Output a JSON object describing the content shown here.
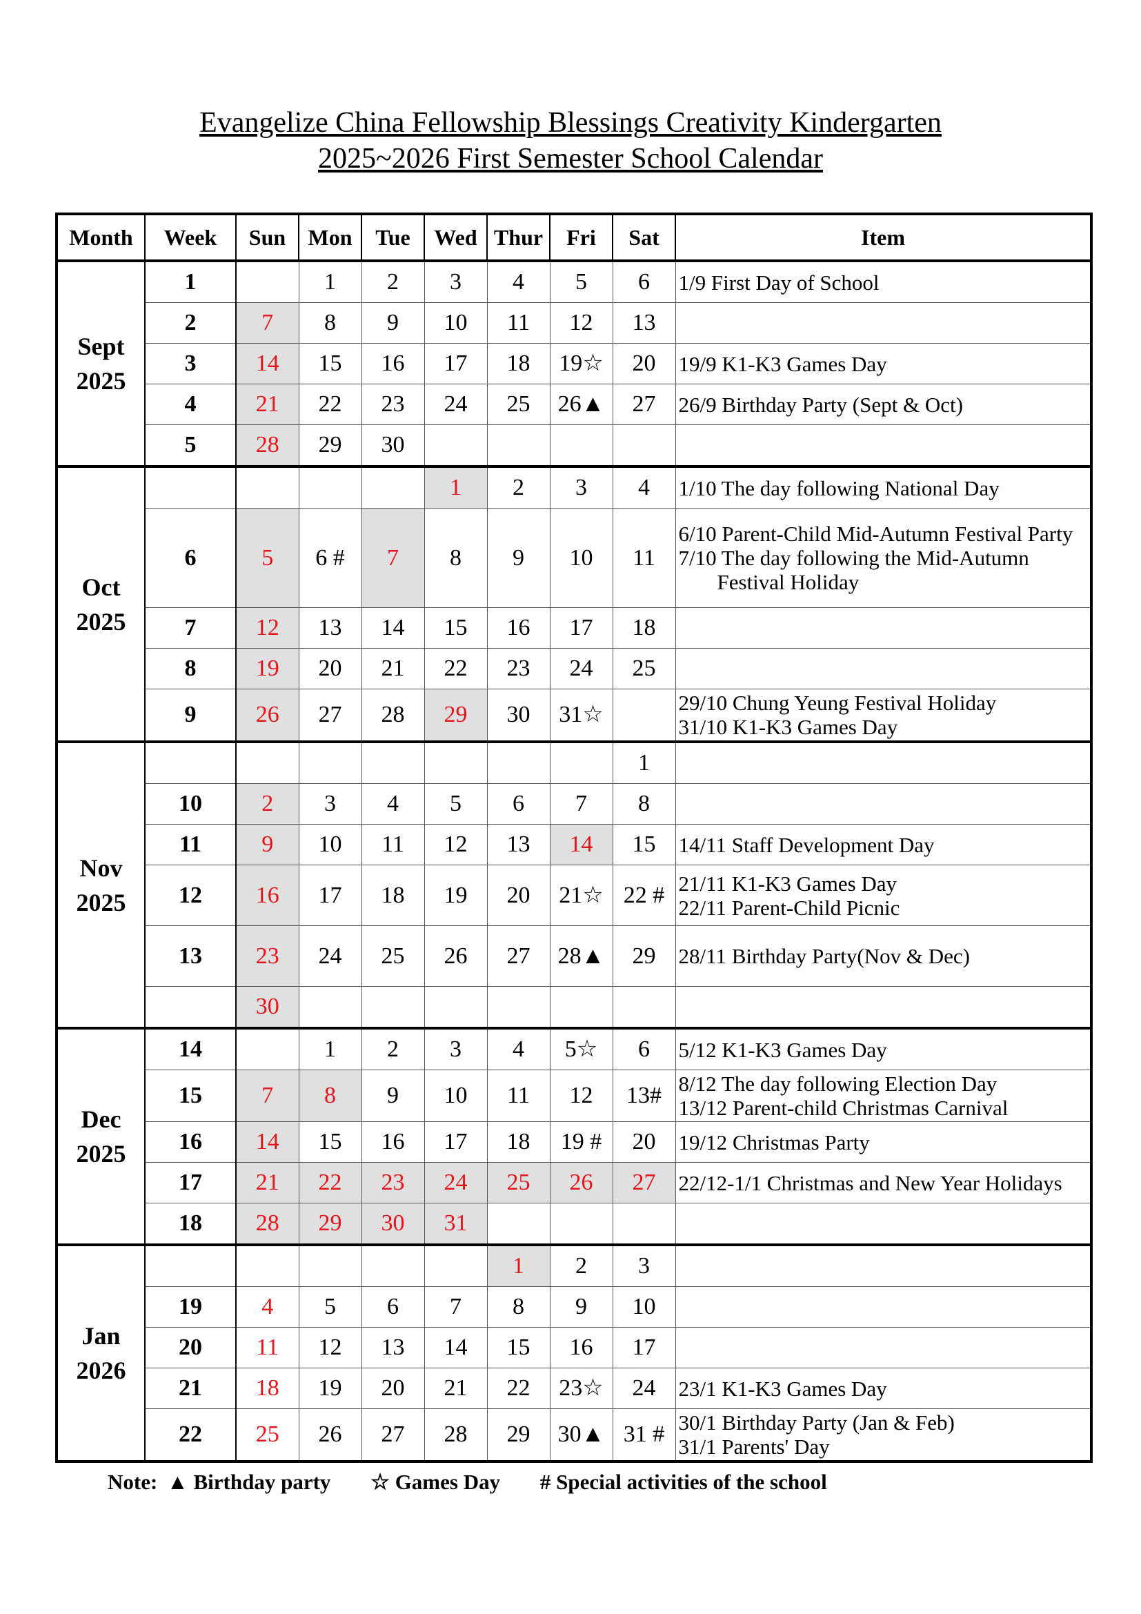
{
  "title": {
    "line1": "Evangelize China Fellowship Blessings Creativity Kindergarten",
    "line2": "2025~2026 First Semester School Calendar"
  },
  "colors": {
    "holiday_text": "#e8141c",
    "holiday_fill": "#e0e0e0"
  },
  "headers": [
    "Month",
    "Week",
    "Sun",
    "Mon",
    "Tue",
    "Wed",
    "Thur",
    "Fri",
    "Sat",
    "Item"
  ],
  "groups": [
    {
      "month": "Sept",
      "year": "2025",
      "rows": [
        {
          "week": "1",
          "days": [
            "",
            "1",
            "2",
            "3",
            "4",
            "5",
            "6"
          ],
          "red": [],
          "grey": [],
          "items": [
            "1/9 First Day of School"
          ]
        },
        {
          "week": "2",
          "days": [
            "7",
            "8",
            "9",
            "10",
            "11",
            "12",
            "13"
          ],
          "red": [
            0
          ],
          "grey": [
            0
          ],
          "items": []
        },
        {
          "week": "3",
          "days": [
            "14",
            "15",
            "16",
            "17",
            "18",
            "19☆",
            "20"
          ],
          "red": [
            0
          ],
          "grey": [
            0
          ],
          "items": [
            "19/9 K1-K3 Games Day"
          ]
        },
        {
          "week": "4",
          "days": [
            "21",
            "22",
            "23",
            "24",
            "25",
            "26▲",
            "27"
          ],
          "red": [
            0
          ],
          "grey": [
            0
          ],
          "items": [
            "26/9 Birthday Party (Sept & Oct)"
          ]
        },
        {
          "week": "5",
          "days": [
            "28",
            "29",
            "30",
            "",
            "",
            "",
            ""
          ],
          "red": [
            0
          ],
          "grey": [
            0
          ],
          "items": []
        }
      ]
    },
    {
      "month": "Oct",
      "year": "2025",
      "rows": [
        {
          "week": "",
          "days": [
            "",
            "",
            "",
            "1",
            "2",
            "3",
            "4"
          ],
          "red": [
            3
          ],
          "grey": [
            3
          ],
          "items": [
            "1/10 The day following National Day"
          ]
        },
        {
          "week": "6",
          "days": [
            "5",
            "6 #",
            "7",
            "8",
            "9",
            "10",
            "11"
          ],
          "red": [
            0,
            2
          ],
          "grey": [
            0,
            2
          ],
          "items": [
            "6/10  Parent-Child  Mid-Autumn  Festival Party",
            "7/10  The day following the Mid-Autumn Festival Holiday"
          ]
        },
        {
          "week": "7",
          "days": [
            "12",
            "13",
            "14",
            "15",
            "16",
            "17",
            "18"
          ],
          "red": [
            0
          ],
          "grey": [
            0
          ],
          "items": []
        },
        {
          "week": "8",
          "days": [
            "19",
            "20",
            "21",
            "22",
            "23",
            "24",
            "25"
          ],
          "red": [
            0
          ],
          "grey": [
            0
          ],
          "items": []
        },
        {
          "week": "9",
          "days": [
            "26",
            "27",
            "28",
            "29",
            "30",
            "31☆",
            ""
          ],
          "red": [
            0,
            3
          ],
          "grey": [
            0,
            3
          ],
          "items": [
            "29/10 Chung Yeung Festival Holiday",
            "31/10 K1-K3 Games Day"
          ]
        }
      ]
    },
    {
      "month": "Nov",
      "year": "2025",
      "rows": [
        {
          "week": "",
          "days": [
            "",
            "",
            "",
            "",
            "",
            "",
            "1"
          ],
          "red": [],
          "grey": [],
          "items": []
        },
        {
          "week": "10",
          "days": [
            "2",
            "3",
            "4",
            "5",
            "6",
            "7",
            "8"
          ],
          "red": [
            0
          ],
          "grey": [
            0
          ],
          "items": []
        },
        {
          "week": "11",
          "days": [
            "9",
            "10",
            "11",
            "12",
            "13",
            "14",
            "15"
          ],
          "red": [
            0,
            5
          ],
          "grey": [
            0,
            5
          ],
          "items": [
            "14/11 Staff Development Day"
          ]
        },
        {
          "week": "12",
          "days": [
            "16",
            "17",
            "18",
            "19",
            "20",
            "21☆",
            "22 #"
          ],
          "red": [
            0
          ],
          "grey": [
            0
          ],
          "items": [
            "21/11 K1-K3 Games Day",
            "22/11 Parent-Child Picnic"
          ]
        },
        {
          "week": "13",
          "days": [
            "23",
            "24",
            "25",
            "26",
            "27",
            "28▲",
            "29"
          ],
          "red": [
            0
          ],
          "grey": [
            0
          ],
          "items": [
            "28/11 Birthday Party(Nov & Dec)"
          ]
        },
        {
          "week": "",
          "days": [
            "30",
            "",
            "",
            "",
            "",
            "",
            ""
          ],
          "red": [
            0
          ],
          "grey": [
            0
          ],
          "items": []
        }
      ]
    },
    {
      "month": "Dec",
      "year": "2025",
      "rows": [
        {
          "week": "14",
          "days": [
            "",
            "1",
            "2",
            "3",
            "4",
            "5☆",
            "6"
          ],
          "red": [],
          "grey": [],
          "items": [
            "5/12 K1-K3 Games Day"
          ]
        },
        {
          "week": "15",
          "days": [
            "7",
            "8",
            "9",
            "10",
            "11",
            "12",
            "13#"
          ],
          "red": [
            0,
            1
          ],
          "grey": [
            0,
            1
          ],
          "items": [
            "8/12 The day following Election Day",
            "13/12 Parent-child Christmas Carnival"
          ]
        },
        {
          "week": "16",
          "days": [
            "14",
            "15",
            "16",
            "17",
            "18",
            "19 #",
            "20"
          ],
          "red": [
            0
          ],
          "grey": [
            0
          ],
          "items": [
            "19/12 Christmas Party"
          ]
        },
        {
          "week": "17",
          "days": [
            "21",
            "22",
            "23",
            "24",
            "25",
            "26",
            "27"
          ],
          "red": [
            0,
            1,
            2,
            3,
            4,
            5,
            6
          ],
          "grey": [
            0,
            1,
            2,
            3,
            4,
            5,
            6
          ],
          "items": [
            "22/12-1/1 Christmas and New Year Holidays"
          ]
        },
        {
          "week": "18",
          "days": [
            "28",
            "29",
            "30",
            "31",
            "",
            "",
            ""
          ],
          "red": [
            0,
            1,
            2,
            3
          ],
          "grey": [
            0,
            1,
            2,
            3
          ],
          "items": []
        }
      ]
    },
    {
      "month": "Jan",
      "year": "2026",
      "rows": [
        {
          "week": "",
          "days": [
            "",
            "",
            "",
            "",
            "1",
            "2",
            "3"
          ],
          "red": [
            4
          ],
          "grey": [
            4
          ],
          "items": []
        },
        {
          "week": "19",
          "days": [
            "4",
            "5",
            "6",
            "7",
            "8",
            "9",
            "10"
          ],
          "red": [
            0
          ],
          "grey": [],
          "items": []
        },
        {
          "week": "20",
          "days": [
            "11",
            "12",
            "13",
            "14",
            "15",
            "16",
            "17"
          ],
          "red": [
            0
          ],
          "grey": [],
          "items": []
        },
        {
          "week": "21",
          "days": [
            "18",
            "19",
            "20",
            "21",
            "22",
            "23☆",
            "24"
          ],
          "red": [
            0
          ],
          "grey": [],
          "items": [
            "23/1 K1-K3 Games Day"
          ]
        },
        {
          "week": "22",
          "days": [
            "25",
            "26",
            "27",
            "28",
            "29",
            "30▲",
            "31 #"
          ],
          "red": [
            0
          ],
          "grey": [],
          "items": [
            "30/1 Birthday Party (Jan & Feb)",
            "31/1 Parents' Day"
          ]
        }
      ]
    }
  ],
  "note": {
    "label": "Note:",
    "birthday": "▲ Birthday party",
    "games": "☆ Games Day",
    "special": "# Special activities of the school"
  }
}
